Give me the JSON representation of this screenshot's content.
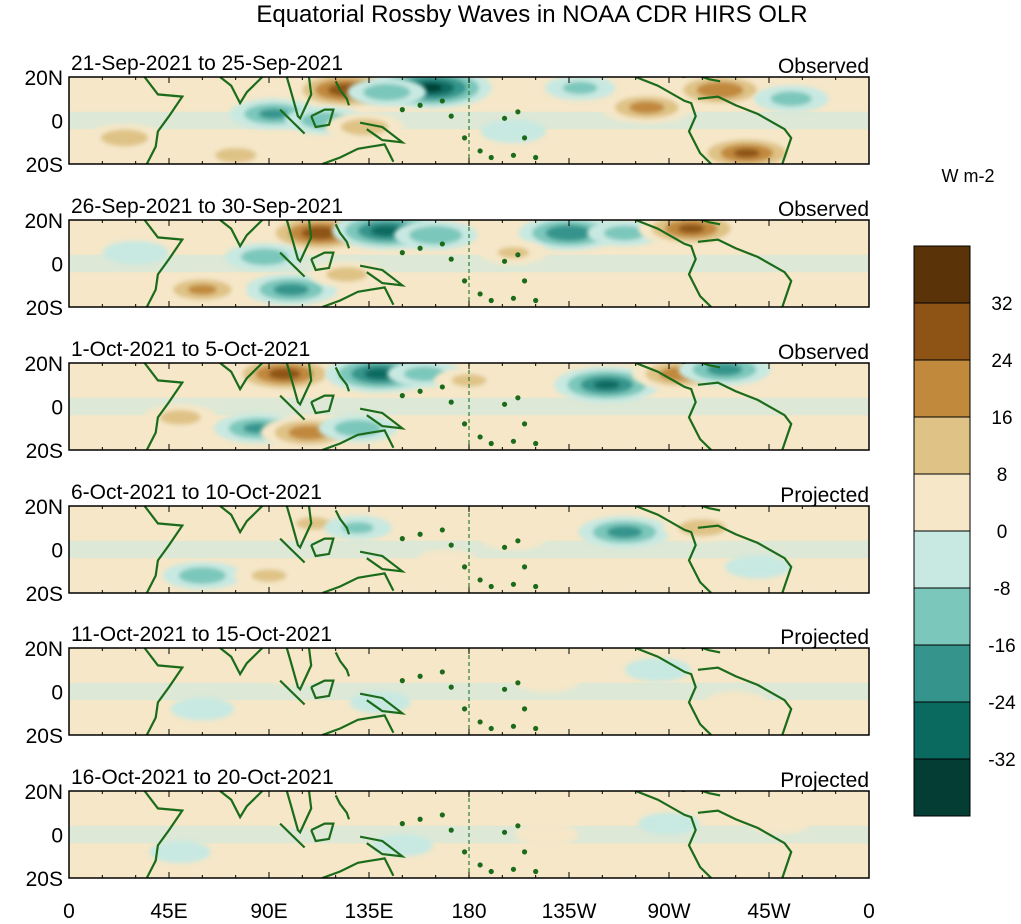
{
  "chart_data": {
    "type": "heatmap",
    "title": "Equatorial Rossby Waves in NOAA CDR HIRS OLR",
    "units": "W m-2",
    "x_ticks": [
      "0",
      "45E",
      "90E",
      "135E",
      "180",
      "135W",
      "90W",
      "45W",
      "0"
    ],
    "y_ticks": [
      "20N",
      "0",
      "20S"
    ],
    "colorbar": {
      "levels": [
        "32",
        "24",
        "16",
        "8",
        "0",
        "-8",
        "-16",
        "-24",
        "-32"
      ],
      "colors": [
        "#5a3408",
        "#8e5416",
        "#c1893c",
        "#dfc386",
        "#f5e7c8",
        "#c8e9e2",
        "#7cc7bb",
        "#35958d",
        "#0b6a60",
        "#033d33"
      ]
    },
    "panels": [
      {
        "period": "21-Sep-2021 to 25-Sep-2021",
        "status": "Observed",
        "anomalies": [
          {
            "lon": 125,
            "lat": 14,
            "value": 30
          },
          {
            "lon": 163,
            "lat": 15,
            "value": -33
          },
          {
            "lon": 143,
            "lat": 13,
            "value": -14
          },
          {
            "lon": 92,
            "lat": 3,
            "value": -18
          },
          {
            "lon": 115,
            "lat": 0,
            "value": -14
          },
          {
            "lon": 133,
            "lat": -3,
            "value": 14
          },
          {
            "lon": 260,
            "lat": 6,
            "value": 20
          },
          {
            "lon": 293,
            "lat": 14,
            "value": 24
          },
          {
            "lon": 305,
            "lat": -15,
            "value": 26
          },
          {
            "lon": 75,
            "lat": -16,
            "value": 12
          },
          {
            "lon": 25,
            "lat": -8,
            "value": 14
          },
          {
            "lon": 230,
            "lat": 15,
            "value": -10
          },
          {
            "lon": 200,
            "lat": -5,
            "value": -8
          },
          {
            "lon": 325,
            "lat": 10,
            "value": -12
          }
        ]
      },
      {
        "period": "26-Sep-2021 to 30-Sep-2021",
        "status": "Observed",
        "anomalies": [
          {
            "lon": 113,
            "lat": 14,
            "value": 30
          },
          {
            "lon": 143,
            "lat": 15,
            "value": -28
          },
          {
            "lon": 165,
            "lat": 13,
            "value": -16
          },
          {
            "lon": 88,
            "lat": 3,
            "value": -14
          },
          {
            "lon": 100,
            "lat": -12,
            "value": -20
          },
          {
            "lon": 60,
            "lat": -12,
            "value": 18
          },
          {
            "lon": 125,
            "lat": -5,
            "value": 12
          },
          {
            "lon": 225,
            "lat": 14,
            "value": -24
          },
          {
            "lon": 250,
            "lat": 14,
            "value": -12
          },
          {
            "lon": 280,
            "lat": 16,
            "value": 26
          },
          {
            "lon": 200,
            "lat": 5,
            "value": 9
          },
          {
            "lon": 30,
            "lat": 5,
            "value": -8
          }
        ]
      },
      {
        "period": "1-Oct-2021 to 5-Oct-2021",
        "status": "Observed",
        "anomalies": [
          {
            "lon": 97,
            "lat": 15,
            "value": 28
          },
          {
            "lon": 140,
            "lat": 15,
            "value": -28
          },
          {
            "lon": 160,
            "lat": 15,
            "value": -12
          },
          {
            "lon": 85,
            "lat": -10,
            "value": -18
          },
          {
            "lon": 108,
            "lat": -12,
            "value": 22
          },
          {
            "lon": 130,
            "lat": -10,
            "value": -14
          },
          {
            "lon": 242,
            "lat": 10,
            "value": -26
          },
          {
            "lon": 275,
            "lat": 15,
            "value": 22
          },
          {
            "lon": 295,
            "lat": 17,
            "value": -20
          },
          {
            "lon": 50,
            "lat": -5,
            "value": 12
          },
          {
            "lon": 180,
            "lat": 12,
            "value": 10
          }
        ]
      },
      {
        "period": "6-Oct-2021 to 10-Oct-2021",
        "status": "Projected",
        "anomalies": [
          {
            "lon": 60,
            "lat": -12,
            "value": -14
          },
          {
            "lon": 90,
            "lat": -12,
            "value": 10
          },
          {
            "lon": 110,
            "lat": 12,
            "value": 10
          },
          {
            "lon": 130,
            "lat": 10,
            "value": -9
          },
          {
            "lon": 250,
            "lat": 8,
            "value": -20
          },
          {
            "lon": 285,
            "lat": 10,
            "value": 14
          },
          {
            "lon": 200,
            "lat": 5,
            "value": 8
          },
          {
            "lon": 310,
            "lat": -8,
            "value": -8
          },
          {
            "lon": 170,
            "lat": -5,
            "value": 6
          }
        ]
      },
      {
        "period": "11-Oct-2021 to 15-Oct-2021",
        "status": "Projected",
        "anomalies": [
          {
            "lon": 60,
            "lat": -8,
            "value": -7
          },
          {
            "lon": 100,
            "lat": 8,
            "value": 6
          },
          {
            "lon": 140,
            "lat": -5,
            "value": -6
          },
          {
            "lon": 215,
            "lat": 5,
            "value": 8
          },
          {
            "lon": 265,
            "lat": 10,
            "value": -8
          },
          {
            "lon": 300,
            "lat": -5,
            "value": 6
          }
        ]
      },
      {
        "period": "16-Oct-2021 to 20-Oct-2021",
        "status": "Projected",
        "anomalies": [
          {
            "lon": 50,
            "lat": -8,
            "value": -6
          },
          {
            "lon": 105,
            "lat": 8,
            "value": 6
          },
          {
            "lon": 150,
            "lat": -5,
            "value": -6
          },
          {
            "lon": 215,
            "lat": 0,
            "value": 7
          },
          {
            "lon": 270,
            "lat": 5,
            "value": -6
          },
          {
            "lon": 320,
            "lat": 5,
            "value": 5
          }
        ]
      }
    ]
  }
}
